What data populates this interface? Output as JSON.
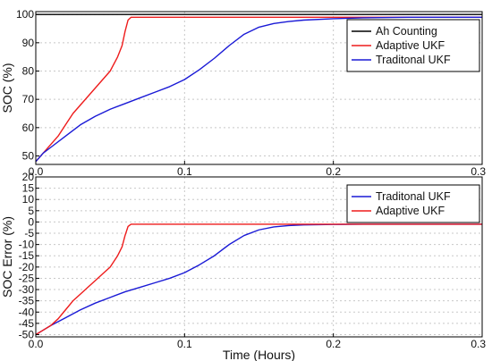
{
  "chart_data": [
    {
      "type": "line",
      "title": "",
      "xlabel": "",
      "ylabel": "SOC (%)",
      "xlim": [
        0,
        0.3
      ],
      "ylim": [
        47,
        101
      ],
      "xticks": [
        0,
        0.1,
        0.2,
        0.3
      ],
      "xtick_labels": [
        "0.0",
        "0.1",
        "0.2",
        "0.3"
      ],
      "yticks": [
        50,
        60,
        70,
        80,
        90,
        100
      ],
      "ytick_labels": [
        "50",
        "60",
        "70",
        "80",
        "90",
        "100"
      ],
      "grid": true,
      "legend_position": "top-right",
      "series": [
        {
          "name": "Ah Counting",
          "color": "#000000",
          "x": [
            0,
            0.3
          ],
          "y": [
            100,
            100
          ]
        },
        {
          "name": "Adaptive UKF",
          "color": "#ee1c1c",
          "x": [
            0,
            0.005,
            0.01,
            0.015,
            0.02,
            0.025,
            0.03,
            0.035,
            0.04,
            0.045,
            0.05,
            0.055,
            0.058,
            0.06,
            0.062,
            0.064,
            0.07,
            0.1,
            0.15,
            0.2,
            0.25,
            0.3
          ],
          "y": [
            48,
            51,
            54,
            57,
            61,
            65,
            68,
            71,
            74,
            77,
            80,
            85,
            89,
            94,
            98,
            99,
            99,
            99,
            99,
            99,
            99,
            99
          ]
        },
        {
          "name": "Traditonal UKF",
          "color": "#1a1ad6",
          "x": [
            0,
            0.005,
            0.01,
            0.02,
            0.03,
            0.04,
            0.05,
            0.06,
            0.07,
            0.08,
            0.09,
            0.1,
            0.11,
            0.12,
            0.13,
            0.14,
            0.15,
            0.16,
            0.17,
            0.18,
            0.2,
            0.22,
            0.25,
            0.3
          ],
          "y": [
            48,
            51,
            53,
            57,
            61,
            64,
            66.5,
            68.5,
            70.5,
            72.5,
            74.5,
            77,
            80.5,
            84.5,
            89,
            93,
            95.5,
            96.8,
            97.5,
            98,
            98.5,
            98.8,
            99,
            99
          ]
        }
      ]
    },
    {
      "type": "line",
      "title": "",
      "xlabel": "Time (Hours)",
      "ylabel": "SOC Error (%)",
      "xlim": [
        0,
        0.3
      ],
      "ylim": [
        -51,
        20
      ],
      "xticks": [
        0,
        0.1,
        0.2,
        0.3
      ],
      "xtick_labels": [
        "0.0",
        "0.1",
        "0.2",
        "0.3"
      ],
      "yticks": [
        -50,
        -45,
        -40,
        -35,
        -30,
        -25,
        -20,
        -15,
        -10,
        -5,
        0,
        5,
        10,
        15,
        20
      ],
      "ytick_labels": [
        "-50",
        "-45",
        "-40",
        "-35",
        "-30",
        "-25",
        "-20",
        "-15",
        "-10",
        "-5",
        "0",
        "5",
        "10",
        "15",
        "20"
      ],
      "grid": true,
      "legend_position": "top-right",
      "series": [
        {
          "name": "Traditonal UKF",
          "color": "#1a1ad6",
          "x": [
            0,
            0.005,
            0.01,
            0.02,
            0.03,
            0.04,
            0.05,
            0.06,
            0.07,
            0.08,
            0.09,
            0.1,
            0.11,
            0.12,
            0.13,
            0.14,
            0.15,
            0.16,
            0.17,
            0.18,
            0.2,
            0.22,
            0.25,
            0.3
          ],
          "y": [
            -50,
            -48,
            -46,
            -42.5,
            -39,
            -36,
            -33.5,
            -31,
            -29,
            -27,
            -25,
            -22.5,
            -19,
            -15,
            -10,
            -6,
            -3.5,
            -2.2,
            -1.6,
            -1.3,
            -1.1,
            -1,
            -1,
            -1
          ]
        },
        {
          "name": "Adaptive UKF",
          "color": "#ee1c1c",
          "x": [
            0,
            0.005,
            0.01,
            0.015,
            0.02,
            0.025,
            0.03,
            0.035,
            0.04,
            0.045,
            0.05,
            0.055,
            0.058,
            0.06,
            0.062,
            0.064,
            0.07,
            0.1,
            0.15,
            0.2,
            0.25,
            0.3
          ],
          "y": [
            -50,
            -48,
            -46,
            -43,
            -39,
            -35,
            -32,
            -29,
            -26,
            -23,
            -20,
            -15,
            -11,
            -6,
            -2,
            -1,
            -1,
            -1,
            -1,
            -1,
            -1,
            -1
          ]
        }
      ]
    }
  ]
}
